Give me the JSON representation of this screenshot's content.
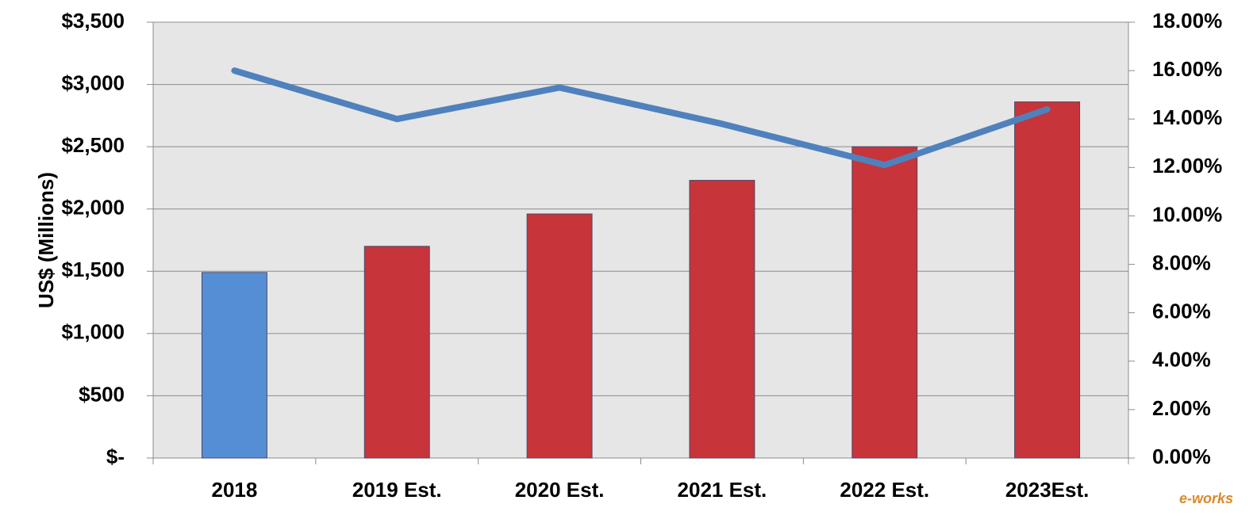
{
  "chart_data": {
    "type": "combo",
    "categories": [
      "2018",
      "2019 Est.",
      "2020 Est.",
      "2021 Est.",
      "2022 Est.",
      "2023Est."
    ],
    "series": [
      {
        "type": "bar",
        "colors": [
          "#558ed5",
          "#c7343a",
          "#c7343a",
          "#c7343a",
          "#c7343a",
          "#c7343a"
        ],
        "values": [
          1490,
          1700,
          1960,
          2230,
          2500,
          2860
        ]
      },
      {
        "type": "line",
        "axis": "y2",
        "color": "#4f81bd",
        "values": [
          16.0,
          14.0,
          15.3,
          13.8,
          12.1,
          14.4
        ]
      }
    ],
    "ylabel": "US$ (Millions)",
    "ylim": [
      0,
      3500
    ],
    "yticks": [
      {
        "value": 0,
        "label": "$-"
      },
      {
        "value": 500,
        "label": "$500"
      },
      {
        "value": 1000,
        "label": "$1,000"
      },
      {
        "value": 1500,
        "label": "$1,500"
      },
      {
        "value": 2000,
        "label": "$2,000"
      },
      {
        "value": 2500,
        "label": "$2,500"
      },
      {
        "value": 3000,
        "label": "$3,000"
      },
      {
        "value": 3500,
        "label": "$3,500"
      }
    ],
    "y2lim": [
      0,
      18
    ],
    "y2ticks": [
      {
        "value": 0,
        "label": "0.00%"
      },
      {
        "value": 2,
        "label": "2.00%"
      },
      {
        "value": 4,
        "label": "4.00%"
      },
      {
        "value": 6,
        "label": "6.00%"
      },
      {
        "value": 8,
        "label": "8.00%"
      },
      {
        "value": 10,
        "label": "10.00%"
      },
      {
        "value": 12,
        "label": "12.00%"
      },
      {
        "value": 14,
        "label": "14.00%"
      },
      {
        "value": 16,
        "label": "16.00%"
      },
      {
        "value": 18,
        "label": "18.00%"
      }
    ],
    "grid": true,
    "watermark": "e-works"
  }
}
